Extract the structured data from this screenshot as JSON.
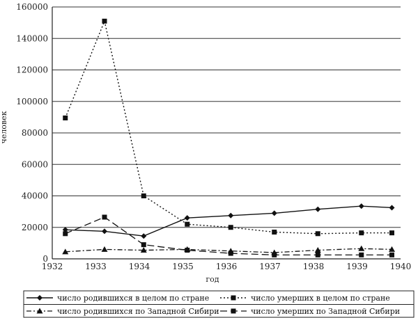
{
  "chart_data": {
    "type": "line",
    "xlabel": "год",
    "ylabel": "человек",
    "ylim": [
      0,
      160000
    ],
    "yticks": [
      "0",
      "20000",
      "40000",
      "60000",
      "80000",
      "100000",
      "120000",
      "140000",
      "160000"
    ],
    "xlim": [
      1932,
      1940
    ],
    "xticks": [
      "1932",
      "1933",
      "1934",
      "1935",
      "1936",
      "1937",
      "1938",
      "1939",
      "1940"
    ],
    "grid": "horizontal",
    "legend_position": "bottom",
    "x": [
      1932.3,
      1933.2,
      1934.1,
      1935.1,
      1936.1,
      1937.1,
      1938.1,
      1939.1,
      1939.8
    ],
    "series": [
      {
        "name": "число родившихся в целом по стране",
        "style": "solid",
        "marker": "diamond",
        "values": [
          18500,
          17500,
          14500,
          26000,
          27500,
          29000,
          31500,
          33500,
          32500
        ]
      },
      {
        "name": "число умерших в целом по стране",
        "style": "dotted",
        "marker": "square",
        "values": [
          89500,
          151000,
          40000,
          22000,
          20000,
          17000,
          16000,
          16500,
          16500
        ]
      },
      {
        "name": "число родившихся по Западной Сибири",
        "style": "dash-dot",
        "marker": "triangle",
        "values": [
          4500,
          6000,
          5500,
          6000,
          5000,
          4000,
          5500,
          6500,
          6000
        ]
      },
      {
        "name": "число умерших по Западной Сибири",
        "style": "long-dash",
        "marker": "square",
        "values": [
          16000,
          26500,
          9000,
          5500,
          3500,
          2500,
          2500,
          2500,
          2500
        ]
      }
    ]
  }
}
